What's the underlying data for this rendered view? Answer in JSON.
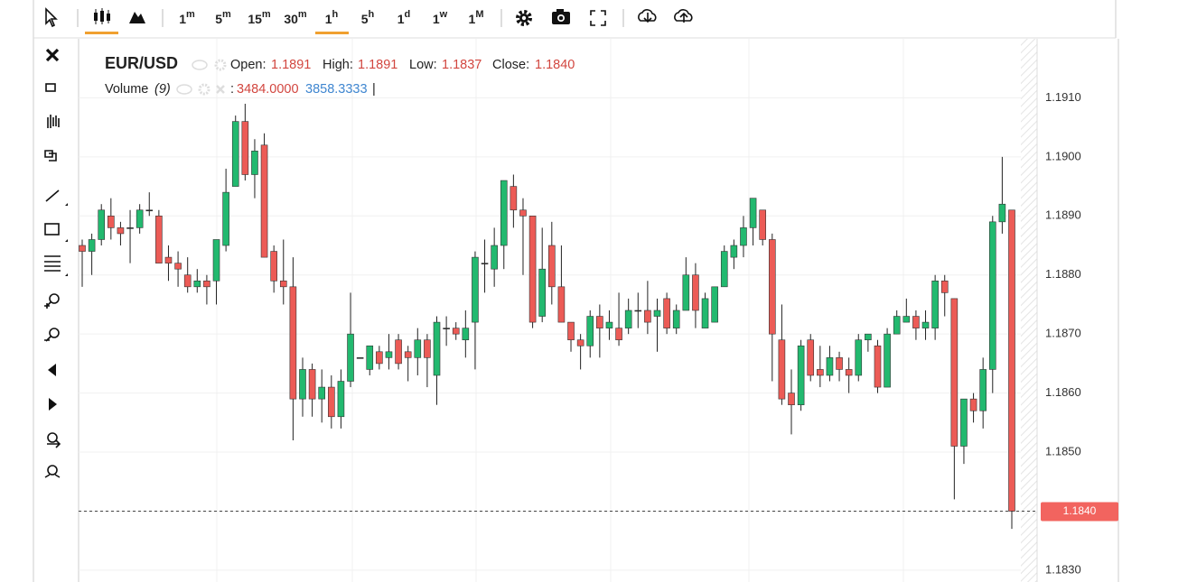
{
  "toolbar": {
    "intervals": [
      {
        "n": "1",
        "u": "m"
      },
      {
        "n": "5",
        "u": "m"
      },
      {
        "n": "15",
        "u": "m"
      },
      {
        "n": "30",
        "u": "m"
      },
      {
        "n": "1",
        "u": "h"
      },
      {
        "n": "5",
        "u": "h"
      },
      {
        "n": "1",
        "u": "d"
      },
      {
        "n": "1",
        "u": "w"
      },
      {
        "n": "1",
        "u": "M"
      }
    ]
  },
  "legend": {
    "symbol": "EUR/USD",
    "open_label": "Open:",
    "open": "1.1891",
    "high_label": "High:",
    "high": "1.1891",
    "low_label": "Low:",
    "low": "1.1837",
    "close_label": "Close:",
    "close": "1.1840",
    "volume_label": "Volume",
    "volume_param": "(9)",
    "volume_sep": ":",
    "volume_value1": "3484.0000",
    "volume_value2": "3858.3333",
    "cursor": "|"
  },
  "chart_data": {
    "type": "candlestick",
    "open": [
      1.1885,
      1.1884,
      1.1886,
      1.189,
      1.1888,
      1.1888,
      1.1888,
      1.1891,
      1.189,
      1.1883,
      1.1882,
      1.188,
      1.1878,
      1.1879,
      1.1879,
      1.1885,
      1.1895,
      1.1906,
      1.1897,
      1.1902,
      1.1884,
      1.1879,
      1.1878,
      1.1859,
      1.1864,
      1.1859,
      1.1861,
      1.1856,
      1.1862,
      1.1866,
      1.1864,
      1.1867,
      1.1866,
      1.1869,
      1.1867,
      1.1866,
      1.1869,
      1.1863,
      1.1871,
      1.1871,
      1.1869,
      1.1872,
      1.1882,
      1.1881,
      1.1885,
      1.1895,
      1.1891,
      1.189,
      1.1873,
      1.1885,
      1.1878,
      1.1872,
      1.1869,
      1.1868,
      1.1873,
      1.1871,
      1.1871,
      1.1871,
      1.1874,
      1.1874,
      1.1873,
      1.1876,
      1.1871,
      1.1874,
      1.188,
      1.1871,
      1.1872,
      1.1878,
      1.1883,
      1.1885,
      1.1888,
      1.1891,
      1.1886,
      1.1869,
      1.186,
      1.1858,
      1.1869,
      1.1864,
      1.1863,
      1.1866,
      1.1864,
      1.1863,
      1.1869,
      1.1868,
      1.1861,
      1.187,
      1.1872,
      1.1873,
      1.1871,
      1.1871,
      1.1879,
      1.1876,
      1.1851,
      1.1859,
      1.1857,
      1.1864,
      1.1889,
      1.1891
    ],
    "high": [
      1.1886,
      1.1887,
      1.1892,
      1.1893,
      1.1889,
      1.1891,
      1.1892,
      1.1894,
      1.1891,
      1.1885,
      1.1884,
      1.1883,
      1.1881,
      1.188,
      1.1886,
      1.1898,
      1.1907,
      1.1909,
      1.1903,
      1.1904,
      1.1885,
      1.1886,
      1.1883,
      1.1866,
      1.1865,
      1.1864,
      1.1863,
      1.1864,
      1.1877,
      1.1866,
      1.1868,
      1.1868,
      1.187,
      1.187,
      1.1868,
      1.1871,
      1.187,
      1.1873,
      1.1873,
      1.1872,
      1.1874,
      1.1884,
      1.1886,
      1.1888,
      1.1896,
      1.1897,
      1.1893,
      1.189,
      1.1888,
      1.1889,
      1.1885,
      1.1872,
      1.187,
      1.1874,
      1.1875,
      1.1874,
      1.1877,
      1.1876,
      1.1877,
      1.1879,
      1.1876,
      1.1877,
      1.1875,
      1.1883,
      1.1882,
      1.1877,
      1.1878,
      1.1885,
      1.1886,
      1.189,
      1.1893,
      1.1891,
      1.1887,
      1.1875,
      1.1864,
      1.1869,
      1.187,
      1.1868,
      1.1868,
      1.1867,
      1.1866,
      1.187,
      1.187,
      1.1869,
      1.1871,
      1.1874,
      1.1876,
      1.1874,
      1.1874,
      1.188,
      1.188,
      1.1876,
      1.1859,
      1.186,
      1.1866,
      1.189,
      1.19,
      1.1891
    ],
    "low": [
      1.1878,
      1.188,
      1.1885,
      1.1886,
      1.1885,
      1.1882,
      1.1887,
      1.189,
      1.1882,
      1.1879,
      1.1878,
      1.1877,
      1.1877,
      1.1875,
      1.1875,
      1.1884,
      1.1895,
      1.1896,
      1.1893,
      1.1883,
      1.1877,
      1.1875,
      1.1852,
      1.1856,
      1.1856,
      1.1855,
      1.1854,
      1.1854,
      1.1861,
      1.1866,
      1.1863,
      1.1864,
      1.1864,
      1.1864,
      1.1862,
      1.1863,
      1.1861,
      1.1858,
      1.1868,
      1.1869,
      1.1866,
      1.1864,
      1.1877,
      1.1878,
      1.1881,
      1.1888,
      1.188,
      1.1871,
      1.1872,
      1.1875,
      1.1872,
      1.1867,
      1.1864,
      1.1866,
      1.1866,
      1.1869,
      1.1868,
      1.187,
      1.1871,
      1.187,
      1.1867,
      1.187,
      1.187,
      1.1874,
      1.1871,
      1.1871,
      1.1872,
      1.1878,
      1.1881,
      1.1883,
      1.1885,
      1.1885,
      1.1862,
      1.1858,
      1.1853,
      1.1857,
      1.1862,
      1.1861,
      1.1862,
      1.1862,
      1.186,
      1.1862,
      1.1867,
      1.186,
      1.1861,
      1.187,
      1.1872,
      1.1869,
      1.1869,
      1.1869,
      1.1873,
      1.1842,
      1.1848,
      1.1855,
      1.1854,
      1.186,
      1.1887,
      1.1837
    ],
    "close": [
      1.1884,
      1.1886,
      1.1891,
      1.1888,
      1.1887,
      1.1888,
      1.1891,
      1.1891,
      1.1882,
      1.1882,
      1.1881,
      1.1878,
      1.1879,
      1.1878,
      1.1886,
      1.1894,
      1.1906,
      1.1897,
      1.1901,
      1.1883,
      1.1879,
      1.1878,
      1.1859,
      1.1864,
      1.1859,
      1.1861,
      1.1856,
      1.1862,
      1.187,
      1.1866,
      1.1868,
      1.1865,
      1.1867,
      1.1865,
      1.1866,
      1.1869,
      1.1866,
      1.1872,
      1.1871,
      1.187,
      1.1871,
      1.1883,
      1.1882,
      1.1885,
      1.1896,
      1.1891,
      1.189,
      1.1872,
      1.1881,
      1.1878,
      1.1872,
      1.1869,
      1.1868,
      1.1873,
      1.1871,
      1.1872,
      1.1869,
      1.1874,
      1.1874,
      1.1872,
      1.1874,
      1.1871,
      1.1874,
      1.188,
      1.1874,
      1.1876,
      1.1878,
      1.1884,
      1.1885,
      1.1888,
      1.1893,
      1.1886,
      1.187,
      1.1859,
      1.1858,
      1.1868,
      1.1863,
      1.1863,
      1.1866,
      1.1864,
      1.1863,
      1.1869,
      1.187,
      1.1861,
      1.187,
      1.1873,
      1.1873,
      1.1871,
      1.1872,
      1.1879,
      1.1877,
      1.1851,
      1.1859,
      1.1857,
      1.1864,
      1.1889,
      1.1892,
      1.184
    ],
    "up_color": "#22b96f",
    "down_color": "#ec5b56",
    "ylim": [
      1.1828,
      1.192
    ],
    "yticks": [
      {
        "value": 1.191,
        "label": "1.1910"
      },
      {
        "value": 1.19,
        "label": "1.1900"
      },
      {
        "value": 1.189,
        "label": "1.1890"
      },
      {
        "value": 1.188,
        "label": "1.1880"
      },
      {
        "value": 1.187,
        "label": "1.1870"
      },
      {
        "value": 1.186,
        "label": "1.1860"
      },
      {
        "value": 1.185,
        "label": "1.1850"
      },
      {
        "value": 1.184,
        "label": "1.1840"
      },
      {
        "value": 1.183,
        "label": "1.1830"
      }
    ],
    "grid": true,
    "price_line": {
      "value": 1.184,
      "label": "1.1840",
      "color": "#f2645f"
    }
  }
}
